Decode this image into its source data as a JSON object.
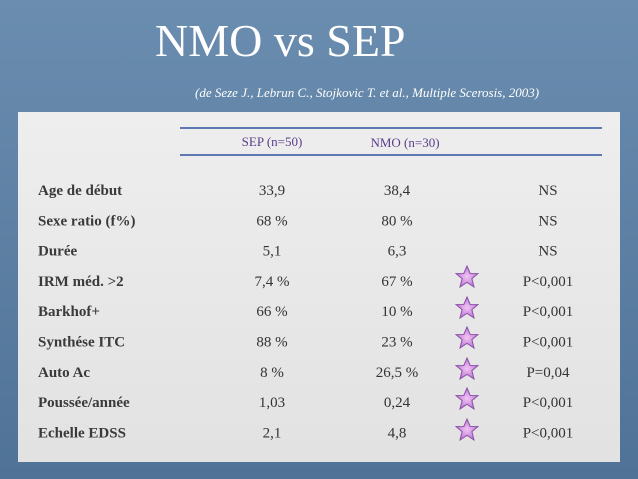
{
  "header": {
    "title": "NMO vs SEP",
    "subtitle": "(de Seze J., Lebrun C., Stojkovic T. et al., Multiple Scerosis, 2003)"
  },
  "table": {
    "columns": [
      "SEP (n=50)",
      "NMO (n=30)"
    ],
    "rows": [
      [
        "Age de début",
        "33,9",
        "38,4",
        "NS"
      ],
      [
        "Sexe ratio (f%)",
        "68 %",
        "80 %",
        "NS"
      ],
      [
        "Durée",
        "5,1",
        "6,3",
        "NS"
      ],
      [
        "IRM méd. >2",
        "7,4 %",
        "67 %",
        "P<0,001"
      ],
      [
        "Barkhof+",
        "66 %",
        "10 %",
        "P<0,001"
      ],
      [
        "Synthése ITC",
        "88 %",
        "23 %",
        "P<0,001"
      ],
      [
        "Auto Ac",
        "8 %",
        "26,5 %",
        "P=0,04"
      ],
      [
        "Poussée/année",
        "1,03",
        "0,24",
        "P<0,001"
      ],
      [
        "Echelle EDSS",
        "2,1",
        "4,8",
        "P<0,001"
      ]
    ]
  }
}
